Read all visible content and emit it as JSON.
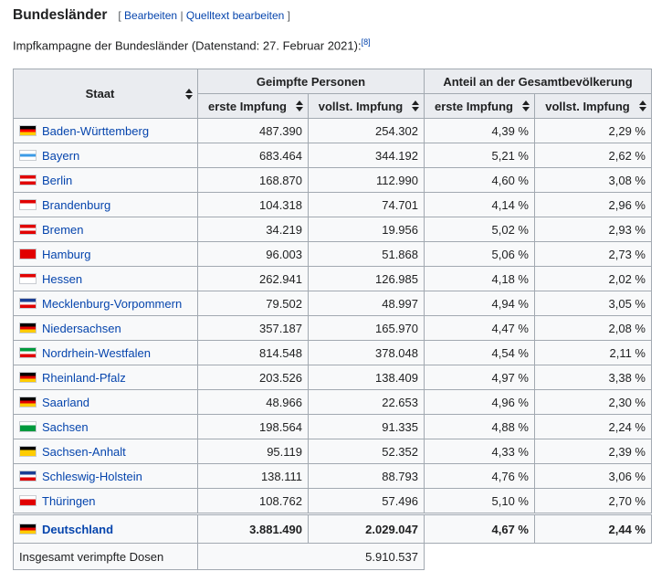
{
  "heading": "Bundesländer",
  "edit_links": {
    "open": "[",
    "edit": "Bearbeiten",
    "sep": "|",
    "source": "Quelltext bearbeiten",
    "close": "]"
  },
  "caption": {
    "text": "Impfkampagne der Bundesländer (Datenstand: 27. Februar 2021):",
    "ref": "[8]"
  },
  "table": {
    "headers": {
      "staat": "Staat",
      "geimpfte": "Geimpfte Personen",
      "anteil": "Anteil an der Gesamtbevölkerung",
      "erste": "erste Impfung",
      "vollst": "vollst. Impfung",
      "erste_pct": "erste Impfung",
      "vollst_pct": "vollst. Impfung"
    },
    "rows": [
      {
        "name": "Baden-Württemberg",
        "erste": "487.390",
        "vollst": "254.302",
        "erste_pct": "4,39 %",
        "vollst_pct": "2,29 %",
        "flag": "#000000,#ff0000,#ffcc00"
      },
      {
        "name": "Bayern",
        "erste": "683.464",
        "vollst": "344.192",
        "erste_pct": "5,21 %",
        "vollst_pct": "2,62 %",
        "flag": "#ffffff,#3c9be6,#ffffff"
      },
      {
        "name": "Berlin",
        "erste": "168.870",
        "vollst": "112.990",
        "erste_pct": "4,60 %",
        "vollst_pct": "3,08 %",
        "flag": "#e10000,#ffffff,#e10000"
      },
      {
        "name": "Brandenburg",
        "erste": "104.318",
        "vollst": "74.701",
        "erste_pct": "4,14 %",
        "vollst_pct": "2,96 %",
        "flag": "#e10000,#ffffff,#ffffff"
      },
      {
        "name": "Bremen",
        "erste": "34.219",
        "vollst": "19.956",
        "erste_pct": "5,02 %",
        "vollst_pct": "2,93 %",
        "flag": "#e10000,#ffffff,#e10000"
      },
      {
        "name": "Hamburg",
        "erste": "96.003",
        "vollst": "51.868",
        "erste_pct": "5,06 %",
        "vollst_pct": "2,73 %",
        "flag": "#e10000,#e10000,#e10000"
      },
      {
        "name": "Hessen",
        "erste": "262.941",
        "vollst": "126.985",
        "erste_pct": "4,18 %",
        "vollst_pct": "2,02 %",
        "flag": "#e10000,#ffffff,#ffffff"
      },
      {
        "name": "Mecklenburg-Vorpommern",
        "erste": "79.502",
        "vollst": "48.997",
        "erste_pct": "4,94 %",
        "vollst_pct": "3,05 %",
        "flag": "#1c3f94,#ffffff,#e10000"
      },
      {
        "name": "Niedersachsen",
        "erste": "357.187",
        "vollst": "165.970",
        "erste_pct": "4,47 %",
        "vollst_pct": "2,08 %",
        "flag": "#000000,#e10000,#ffcc00"
      },
      {
        "name": "Nordrhein-Westfalen",
        "erste": "814.548",
        "vollst": "378.048",
        "erste_pct": "4,54 %",
        "vollst_pct": "2,11 %",
        "flag": "#009a3d,#ffffff,#e10000"
      },
      {
        "name": "Rheinland-Pfalz",
        "erste": "203.526",
        "vollst": "138.409",
        "erste_pct": "4,97 %",
        "vollst_pct": "3,38 %",
        "flag": "#000000,#e10000,#ffcc00"
      },
      {
        "name": "Saarland",
        "erste": "48.966",
        "vollst": "22.653",
        "erste_pct": "4,96 %",
        "vollst_pct": "2,30 %",
        "flag": "#000000,#e10000,#ffcc00"
      },
      {
        "name": "Sachsen",
        "erste": "198.564",
        "vollst": "91.335",
        "erste_pct": "4,88 %",
        "vollst_pct": "2,24 %",
        "flag": "#ffffff,#009a3d,#009a3d"
      },
      {
        "name": "Sachsen-Anhalt",
        "erste": "95.119",
        "vollst": "52.352",
        "erste_pct": "4,33 %",
        "vollst_pct": "2,39 %",
        "flag": "#000000,#ffcc00,#ffcc00"
      },
      {
        "name": "Schleswig-Holstein",
        "erste": "138.111",
        "vollst": "88.793",
        "erste_pct": "4,76 %",
        "vollst_pct": "3,06 %",
        "flag": "#1c3f94,#ffffff,#e10000"
      },
      {
        "name": "Thüringen",
        "erste": "108.762",
        "vollst": "57.496",
        "erste_pct": "5,10 %",
        "vollst_pct": "2,70 %",
        "flag": "#ffffff,#e10000,#e10000"
      }
    ],
    "total": {
      "name": "Deutschland",
      "erste": "3.881.490",
      "vollst": "2.029.047",
      "erste_pct": "4,67 %",
      "vollst_pct": "2,44 %",
      "flag": "#000000,#e10000,#ffcc00"
    },
    "footer": {
      "label": "Insgesamt verimpfte Dosen",
      "value": "5.910.537"
    }
  }
}
